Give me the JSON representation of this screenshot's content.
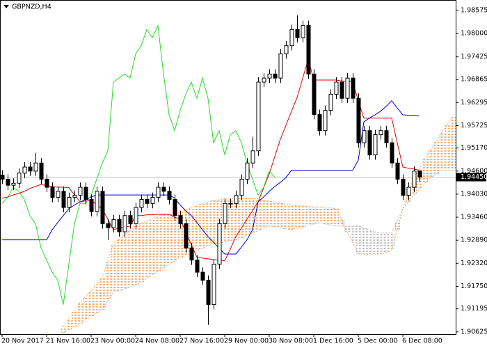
{
  "chart_data": {
    "type": "candlestick",
    "title": "GBPNZD,H4",
    "categories": [
      "20 Nov 2017",
      null,
      null,
      null,
      null,
      null,
      null,
      null,
      "21 Nov 16:00",
      null,
      null,
      null,
      null,
      null,
      null,
      null,
      "23 Nov 00:00",
      null,
      null,
      null,
      null,
      null,
      null,
      null,
      "24 Nov 08:00",
      null,
      null,
      null,
      null,
      null,
      null,
      null,
      "27 Nov 16:00",
      null,
      null,
      null,
      null,
      null,
      null,
      null,
      "29 Nov 00:00",
      null,
      null,
      null,
      null,
      null,
      null,
      null,
      "30 Nov 08:00",
      null,
      null,
      null,
      null,
      null,
      null,
      null,
      "1 Dec 16:00",
      null,
      null,
      null,
      null,
      null,
      null,
      null,
      "5 Dec 00:00",
      null,
      null,
      null,
      null,
      null,
      null,
      null,
      "6 Dec 08:00",
      null,
      null,
      null,
      null,
      null,
      null,
      null,
      null,
      null
    ],
    "open": [
      1.945,
      1.944,
      1.9425,
      1.943,
      1.9455,
      1.947,
      1.946,
      1.948,
      1.944,
      1.942,
      1.9395,
      1.941,
      1.937,
      1.9395,
      1.94,
      1.942,
      1.939,
      1.936,
      1.941,
      1.933,
      1.932,
      1.934,
      1.931,
      1.935,
      1.933,
      1.937,
      1.939,
      1.938,
      1.9395,
      1.942,
      1.941,
      1.939,
      1.935,
      1.933,
      1.927,
      1.924,
      1.921,
      1.919,
      1.913,
      1.923,
      1.933,
      1.938,
      1.938,
      1.94,
      1.944,
      1.948,
      1.951,
      1.968,
      1.969,
      1.97,
      1.969,
      1.975,
      1.977,
      1.981,
      1.979,
      1.982,
      1.97,
      1.96,
      1.956,
      1.961,
      1.965,
      1.968,
      1.964,
      1.969,
      1.964,
      1.953,
      1.956,
      1.95,
      1.955,
      1.956,
      1.953,
      1.948,
      1.944,
      1.94,
      1.942,
      1.946,
      null,
      null,
      null,
      null,
      null,
      null
    ],
    "high": [
      1.9462,
      1.9452,
      1.9442,
      1.9467,
      1.9482,
      1.9482,
      1.9505,
      1.9492,
      1.9452,
      1.9432,
      1.9422,
      1.9422,
      1.9407,
      1.9412,
      1.9432,
      1.9432,
      1.9402,
      1.9422,
      1.9422,
      1.9342,
      1.9352,
      1.9352,
      1.9362,
      1.9362,
      1.9382,
      1.9402,
      1.9402,
      1.9407,
      1.9432,
      1.9432,
      1.9422,
      1.9402,
      1.9362,
      1.9342,
      1.9282,
      1.9252,
      1.9222,
      1.9202,
      1.9242,
      1.9342,
      1.9392,
      1.9392,
      1.9412,
      1.9452,
      1.9492,
      1.9545,
      1.9692,
      1.9702,
      1.9712,
      1.9712,
      1.9762,
      1.9782,
      1.9822,
      1.9845,
      1.9832,
      1.9832,
      1.9712,
      1.9612,
      1.9622,
      1.9662,
      1.9692,
      1.9692,
      1.9702,
      1.9702,
      1.9652,
      1.9572,
      1.9572,
      1.9562,
      1.9572,
      1.9572,
      1.9542,
      1.9492,
      1.9452,
      1.9432,
      1.9472,
      1.9457,
      null,
      null,
      null,
      null,
      null,
      null
    ],
    "low": [
      1.9428,
      1.9413,
      1.9413,
      1.9418,
      1.9443,
      1.9448,
      1.9448,
      1.9428,
      1.9408,
      1.9383,
      1.9383,
      1.9358,
      1.9358,
      1.9383,
      1.9388,
      1.9378,
      1.9348,
      1.9348,
      1.9318,
      1.929,
      1.9308,
      1.9298,
      1.9298,
      1.9318,
      1.9318,
      1.9358,
      1.9368,
      1.9368,
      1.9383,
      1.9398,
      1.9378,
      1.9338,
      1.9318,
      1.9258,
      1.9228,
      1.9198,
      1.9178,
      1.908,
      1.9118,
      1.9218,
      1.9318,
      1.9368,
      1.9368,
      1.9388,
      1.9428,
      1.9468,
      1.9498,
      1.9668,
      1.9678,
      1.9678,
      1.9678,
      1.9738,
      1.9758,
      1.9778,
      1.9778,
      1.9688,
      1.9588,
      1.9548,
      1.9548,
      1.9598,
      1.9638,
      1.9628,
      1.9628,
      1.9628,
      1.9518,
      1.9518,
      1.9488,
      1.9488,
      1.9538,
      1.9518,
      1.9468,
      1.9428,
      1.9388,
      1.9388,
      1.9408,
      1.9433,
      null,
      null,
      null,
      null,
      null,
      null
    ],
    "close": [
      1.944,
      1.9425,
      1.943,
      1.9455,
      1.947,
      1.946,
      1.948,
      1.944,
      1.942,
      1.9395,
      1.941,
      1.937,
      1.9395,
      1.94,
      1.942,
      1.939,
      1.936,
      1.941,
      1.933,
      1.932,
      1.934,
      1.931,
      1.935,
      1.933,
      1.937,
      1.939,
      1.938,
      1.9395,
      1.942,
      1.941,
      1.939,
      1.935,
      1.933,
      1.927,
      1.924,
      1.921,
      1.919,
      1.913,
      1.923,
      1.933,
      1.938,
      1.938,
      1.94,
      1.944,
      1.948,
      1.951,
      1.968,
      1.969,
      1.97,
      1.969,
      1.975,
      1.977,
      1.981,
      1.979,
      1.982,
      1.97,
      1.96,
      1.956,
      1.961,
      1.965,
      1.968,
      1.964,
      1.969,
      1.964,
      1.953,
      1.956,
      1.95,
      1.955,
      1.956,
      1.953,
      1.948,
      1.944,
      1.94,
      1.942,
      1.946,
      1.9445,
      null,
      null,
      null,
      null,
      null,
      null
    ],
    "up_color": "#ffffff",
    "down_color": "#000000",
    "cloud": {
      "span_a": [
        null,
        null,
        null,
        null,
        null,
        null,
        null,
        null,
        null,
        null,
        null,
        1.9075,
        1.9095,
        1.9114,
        1.9135,
        1.915,
        1.9164,
        1.918,
        1.9195,
        1.9238,
        1.9281,
        1.9291,
        1.9302,
        1.9314,
        1.9324,
        1.9331,
        1.9336,
        1.9343,
        1.935,
        1.9352,
        1.9353,
        1.9357,
        1.9358,
        1.9364,
        1.937,
        1.9376,
        1.9379,
        1.9384,
        1.9388,
        1.9389,
        1.9391,
        1.9391,
        1.9393,
        1.9393,
        1.9393,
        1.9393,
        1.9391,
        1.9388,
        1.9386,
        1.9383,
        1.9381,
        1.9377,
        1.9376,
        1.9374,
        1.9374,
        1.9372,
        1.9372,
        1.937,
        1.9369,
        1.9369,
        1.9367,
        1.934,
        1.931,
        1.9283,
        1.9255,
        1.9255,
        1.9255,
        1.9255,
        1.9255,
        1.9259,
        1.9264,
        1.9315,
        1.9367,
        1.9405,
        1.9444,
        1.9467,
        1.9491,
        1.9513,
        1.9534,
        1.9556,
        1.9575,
        1.9594
      ],
      "span_b": [
        null,
        null,
        null,
        null,
        null,
        null,
        null,
        null,
        null,
        null,
        null,
        1.9061,
        1.9068,
        1.9076,
        1.9083,
        1.9092,
        1.91,
        1.9109,
        1.9118,
        1.9138,
        1.9161,
        1.9164,
        1.9169,
        1.9173,
        1.9178,
        1.9186,
        1.9195,
        1.9204,
        1.9212,
        1.9221,
        1.9229,
        1.9238,
        1.9247,
        1.9252,
        1.9259,
        1.9264,
        1.9269,
        1.9276,
        1.9281,
        1.9283,
        1.9284,
        1.9288,
        1.929,
        1.9295,
        1.9302,
        1.9307,
        1.9312,
        1.9319,
        1.9324,
        1.9322,
        1.9319,
        1.9317,
        1.9315,
        1.9319,
        1.9322,
        1.9326,
        1.9329,
        1.9333,
        1.9329,
        1.9327,
        1.9324,
        1.9324,
        1.9324,
        1.9324,
        1.9324,
        1.9319,
        1.9315,
        1.931,
        1.9307,
        1.9307,
        1.9307,
        1.9336,
        1.9367,
        1.9384,
        1.9401,
        1.9415,
        1.9431,
        1.9444,
        1.9453,
        1.9462,
        1.9462,
        1.9462
      ],
      "up_color": "#f4a460",
      "down_color": "#b8b8b8"
    },
    "lines": [
      {
        "color": "#e00000",
        "values": [
          1.9393,
          1.9396,
          1.9401,
          1.9405,
          1.941,
          1.9417,
          1.9422,
          1.9427,
          1.9424,
          1.9422,
          1.942,
          1.942,
          1.9419,
          1.9401,
          1.9384,
          1.9386,
          1.9388,
          1.9377,
          1.9367,
          1.9341,
          1.9315,
          1.9319,
          1.9321,
          1.9324,
          1.935,
          1.935,
          1.9352,
          1.9352,
          1.9353,
          1.9353,
          1.9353,
          1.9346,
          1.9341,
          1.931,
          1.9278,
          1.9247,
          1.9245,
          1.9243,
          1.9241,
          1.924,
          1.9238,
          1.9267,
          1.9298,
          1.9319,
          1.9341,
          1.9362,
          1.9384,
          1.9419,
          1.9453,
          1.9496,
          1.9539,
          1.9573,
          1.9608,
          1.9642,
          1.9689,
          1.9737,
          1.9685,
          1.9685,
          1.9685,
          1.9685,
          1.9685,
          1.9683,
          1.9682,
          1.968,
          1.9634,
          1.9591,
          1.9591,
          1.9591,
          1.9591,
          1.9591,
          1.9591,
          1.953,
          1.947,
          1.9467,
          1.9465,
          1.9462,
          null,
          null,
          null,
          null,
          null,
          null
        ]
      },
      {
        "color": "#0000c8",
        "values": [
          1.929,
          1.929,
          1.929,
          1.929,
          1.929,
          1.929,
          1.929,
          1.929,
          1.929,
          1.9315,
          1.9333,
          1.935,
          1.9367,
          1.9376,
          1.9384,
          1.9389,
          1.9396,
          1.9401,
          1.9401,
          1.9401,
          1.9401,
          1.9401,
          1.9401,
          1.9401,
          1.9401,
          1.9401,
          1.9401,
          1.9401,
          1.9401,
          1.9401,
          1.9401,
          1.9393,
          1.9376,
          1.9362,
          1.935,
          1.9333,
          1.9315,
          1.9298,
          1.9284,
          1.9269,
          1.9255,
          1.9255,
          1.9255,
          1.9272,
          1.929,
          1.9315,
          1.9384,
          1.9396,
          1.941,
          1.9422,
          1.9432,
          1.9444,
          1.9462,
          1.9462,
          1.9462,
          1.9462,
          1.9462,
          1.9462,
          1.9462,
          1.9462,
          1.9462,
          1.9462,
          1.9462,
          1.9462,
          1.9487,
          1.9582,
          1.9591,
          1.9599,
          1.9608,
          1.962,
          1.9634,
          1.9616,
          1.9599,
          1.9598,
          1.9598,
          1.9596,
          null,
          null,
          null,
          null,
          null,
          null
        ]
      },
      {
        "color": "#22dd22",
        "values": [
          1.938,
          1.9395,
          1.942,
          1.941,
          1.939,
          1.935,
          1.933,
          1.927,
          1.924,
          1.921,
          1.919,
          1.913,
          1.923,
          1.933,
          1.938,
          1.938,
          1.94,
          1.944,
          1.948,
          1.951,
          1.968,
          1.969,
          1.97,
          1.969,
          1.975,
          1.977,
          1.981,
          1.979,
          1.982,
          1.97,
          1.96,
          1.956,
          1.961,
          1.965,
          1.968,
          1.964,
          1.969,
          1.964,
          1.953,
          1.956,
          1.95,
          1.955,
          1.956,
          1.953,
          1.948,
          1.944,
          1.94,
          1.942,
          1.946,
          1.9445,
          null,
          null,
          null,
          null,
          null,
          null,
          null,
          null,
          null,
          null,
          null,
          null,
          null,
          null,
          null,
          null,
          null,
          null,
          null,
          null,
          null,
          null,
          null,
          null,
          null,
          null,
          null,
          null,
          null,
          null,
          null,
          null
        ]
      }
    ],
    "current_price": {
      "value": 1.9445,
      "label": "1.94450"
    },
    "ylim": [
      1.9057,
      1.9883
    ],
    "yticks": [
      1.98575,
      {
        "value": 1.98,
        "label": "1.98000"
      },
      1.97425,
      1.96865,
      1.96295,
      1.95725,
      {
        "value": 1.9517,
        "label": "1.95170"
      },
      {
        "value": 1.946,
        "label": "1.94600"
      },
      {
        "value": 1.9403,
        "label": "1.94030"
      },
      {
        "value": 1.9346,
        "label": "1.93460"
      },
      {
        "value": 1.9289,
        "label": "1.92890"
      },
      {
        "value": 1.9232,
        "label": "1.92320"
      },
      {
        "value": 1.9175,
        "label": "1.91750"
      },
      1.91195,
      1.90625
    ]
  }
}
